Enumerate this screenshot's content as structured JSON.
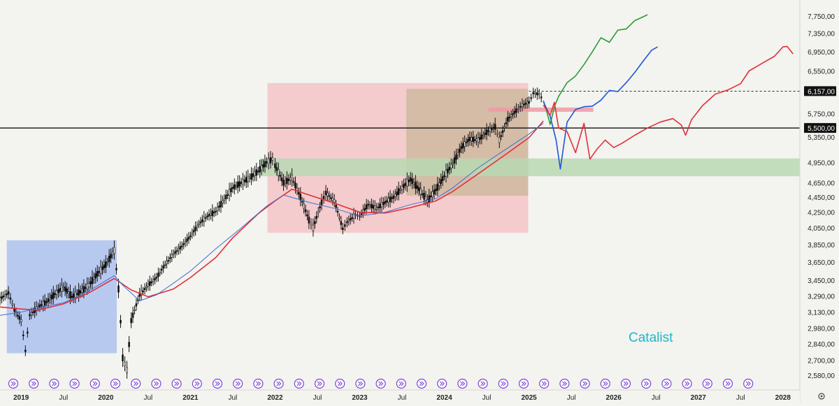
{
  "watermark": "Catalist",
  "chart_data": {
    "type": "line",
    "title": "",
    "xlabel": "",
    "ylabel": "",
    "log_scale": true,
    "ylim": [
      2520,
      8000
    ],
    "xlim": [
      2018.75,
      2028.2
    ],
    "grid": false,
    "x_ticks": [
      {
        "x": 2019.0,
        "label": "2019",
        "bold": true
      },
      {
        "x": 2019.5,
        "label": "Jul",
        "bold": false
      },
      {
        "x": 2020.0,
        "label": "2020",
        "bold": true
      },
      {
        "x": 2020.5,
        "label": "Jul",
        "bold": false
      },
      {
        "x": 2021.0,
        "label": "2021",
        "bold": true
      },
      {
        "x": 2021.5,
        "label": "Jul",
        "bold": false
      },
      {
        "x": 2022.0,
        "label": "2022",
        "bold": true
      },
      {
        "x": 2022.5,
        "label": "Jul",
        "bold": false
      },
      {
        "x": 2023.0,
        "label": "2023",
        "bold": true
      },
      {
        "x": 2023.5,
        "label": "Jul",
        "bold": false
      },
      {
        "x": 2024.0,
        "label": "2024",
        "bold": true
      },
      {
        "x": 2024.5,
        "label": "Jul",
        "bold": false
      },
      {
        "x": 2025.0,
        "label": "2025",
        "bold": true
      },
      {
        "x": 2025.5,
        "label": "Jul",
        "bold": false
      },
      {
        "x": 2026.0,
        "label": "2026",
        "bold": true
      },
      {
        "x": 2026.5,
        "label": "Jul",
        "bold": false
      },
      {
        "x": 2027.0,
        "label": "2027",
        "bold": true
      },
      {
        "x": 2027.5,
        "label": "Jul",
        "bold": false
      },
      {
        "x": 2028.0,
        "label": "2028",
        "bold": true
      }
    ],
    "y_ticks": [
      {
        "value": 7750,
        "label": "7,750,00"
      },
      {
        "value": 7350,
        "label": "7,350,00"
      },
      {
        "value": 6950,
        "label": "6,950,00"
      },
      {
        "value": 6550,
        "label": "6,550,00"
      },
      {
        "value": 5750,
        "label": "5,750,00"
      },
      {
        "value": 5350,
        "label": "5,350,00"
      },
      {
        "value": 4950,
        "label": "4,950,00"
      },
      {
        "value": 4650,
        "label": "4,650,00"
      },
      {
        "value": 4450,
        "label": "4,450,00"
      },
      {
        "value": 4250,
        "label": "4,250,00"
      },
      {
        "value": 4050,
        "label": "4,050,00"
      },
      {
        "value": 3850,
        "label": "3,850,00"
      },
      {
        "value": 3650,
        "label": "3,650,00"
      },
      {
        "value": 3450,
        "label": "3,450,00"
      },
      {
        "value": 3290,
        "label": "3,290,00"
      },
      {
        "value": 3130,
        "label": "3,130,00"
      },
      {
        "value": 2980,
        "label": "2,980,00"
      },
      {
        "value": 2840,
        "label": "2,840,00"
      },
      {
        "value": 2700,
        "label": "2,700,00"
      },
      {
        "value": 2580,
        "label": "2,580,00"
      }
    ],
    "price_labels": [
      {
        "value": 6157,
        "label": "6,157,00",
        "line": "dashed",
        "x_start": 2025.0
      },
      {
        "value": 5500,
        "label": "5,500,00",
        "line": "solid",
        "x_start": 2018.75
      }
    ],
    "zones": [
      {
        "x0": 2018.83,
        "x1": 2020.13,
        "y0": 2760,
        "y1": 3900,
        "color": "#b8c9f0"
      },
      {
        "x0": 2021.91,
        "x1": 2024.99,
        "y0": 3990,
        "y1": 6310,
        "color": "#f4cccd"
      },
      {
        "x0": 2023.55,
        "x1": 2024.99,
        "y0": 4470,
        "y1": 6200,
        "color": "#c9b79a",
        "opacity": 0.75
      },
      {
        "x0": 2021.82,
        "x1": 2028.2,
        "y0": 4745,
        "y1": 5010,
        "color": "#b9d8b3",
        "opacity": 0.85
      },
      {
        "x0": 2024.52,
        "x1": 2025.76,
        "y0": 5780,
        "y1": 5855,
        "color": "#ef9aa4",
        "opacity": 0.85
      }
    ],
    "series": [
      {
        "role": "price",
        "color": "#111111",
        "points": [
          [
            2018.75,
            3260
          ],
          [
            2018.85,
            3320
          ],
          [
            2018.92,
            3150
          ],
          [
            2019.0,
            3050
          ],
          [
            2019.05,
            2780
          ],
          [
            2019.1,
            3100
          ],
          [
            2019.2,
            3180
          ],
          [
            2019.3,
            3230
          ],
          [
            2019.4,
            3310
          ],
          [
            2019.5,
            3380
          ],
          [
            2019.6,
            3280
          ],
          [
            2019.7,
            3330
          ],
          [
            2019.8,
            3400
          ],
          [
            2019.9,
            3520
          ],
          [
            2020.0,
            3620
          ],
          [
            2020.1,
            3780
          ],
          [
            2020.15,
            3360
          ],
          [
            2020.2,
            2720
          ],
          [
            2020.25,
            2620
          ],
          [
            2020.3,
            3050
          ],
          [
            2020.4,
            3300
          ],
          [
            2020.5,
            3400
          ],
          [
            2020.6,
            3480
          ],
          [
            2020.7,
            3620
          ],
          [
            2020.8,
            3740
          ],
          [
            2020.9,
            3830
          ],
          [
            2021.0,
            3950
          ],
          [
            2021.1,
            4100
          ],
          [
            2021.2,
            4200
          ],
          [
            2021.3,
            4260
          ],
          [
            2021.4,
            4420
          ],
          [
            2021.5,
            4580
          ],
          [
            2021.6,
            4650
          ],
          [
            2021.7,
            4720
          ],
          [
            2021.8,
            4820
          ],
          [
            2021.9,
            4950
          ],
          [
            2021.97,
            5000
          ],
          [
            2022.0,
            4900
          ],
          [
            2022.1,
            4650
          ],
          [
            2022.2,
            4720
          ],
          [
            2022.3,
            4450
          ],
          [
            2022.4,
            4150
          ],
          [
            2022.45,
            4050
          ],
          [
            2022.55,
            4380
          ],
          [
            2022.6,
            4510
          ],
          [
            2022.7,
            4400
          ],
          [
            2022.8,
            4040
          ],
          [
            2022.85,
            4120
          ],
          [
            2022.95,
            4220
          ],
          [
            2023.0,
            4200
          ],
          [
            2023.1,
            4350
          ],
          [
            2023.2,
            4300
          ],
          [
            2023.3,
            4380
          ],
          [
            2023.4,
            4450
          ],
          [
            2023.5,
            4580
          ],
          [
            2023.6,
            4700
          ],
          [
            2023.7,
            4560
          ],
          [
            2023.8,
            4400
          ],
          [
            2023.9,
            4550
          ],
          [
            2024.0,
            4750
          ],
          [
            2024.1,
            4930
          ],
          [
            2024.2,
            5180
          ],
          [
            2024.3,
            5320
          ],
          [
            2024.4,
            5300
          ],
          [
            2024.5,
            5430
          ],
          [
            2024.6,
            5520
          ],
          [
            2024.65,
            5300
          ],
          [
            2024.75,
            5650
          ],
          [
            2024.85,
            5800
          ],
          [
            2024.92,
            5900
          ],
          [
            2025.0,
            5950
          ],
          [
            2025.05,
            6120
          ],
          [
            2025.12,
            6100
          ],
          [
            2025.17,
            5980
          ]
        ]
      },
      {
        "role": "moving-average-red",
        "color": "#e0303a",
        "points": [
          [
            2018.75,
            3180
          ],
          [
            2019.0,
            3160
          ],
          [
            2019.2,
            3150
          ],
          [
            2019.5,
            3210
          ],
          [
            2019.8,
            3320
          ],
          [
            2020.1,
            3470
          ],
          [
            2020.3,
            3350
          ],
          [
            2020.5,
            3280
          ],
          [
            2020.8,
            3360
          ],
          [
            2021.0,
            3480
          ],
          [
            2021.3,
            3700
          ],
          [
            2021.5,
            3930
          ],
          [
            2021.8,
            4230
          ],
          [
            2022.0,
            4400
          ],
          [
            2022.2,
            4560
          ],
          [
            2022.4,
            4480
          ],
          [
            2022.7,
            4370
          ],
          [
            2023.0,
            4250
          ],
          [
            2023.3,
            4240
          ],
          [
            2023.6,
            4310
          ],
          [
            2023.9,
            4400
          ],
          [
            2024.1,
            4530
          ],
          [
            2024.4,
            4780
          ],
          [
            2024.7,
            5050
          ],
          [
            2025.0,
            5340
          ],
          [
            2025.17,
            5620
          ]
        ]
      },
      {
        "role": "moving-average-blue",
        "color": "#3f6fd1",
        "points": [
          [
            2018.75,
            3100
          ],
          [
            2019.0,
            3130
          ],
          [
            2019.2,
            3170
          ],
          [
            2019.5,
            3220
          ],
          [
            2019.8,
            3340
          ],
          [
            2020.1,
            3500
          ],
          [
            2020.2,
            3400
          ],
          [
            2020.4,
            3240
          ],
          [
            2020.6,
            3300
          ],
          [
            2020.8,
            3420
          ],
          [
            2021.0,
            3550
          ],
          [
            2021.3,
            3800
          ],
          [
            2021.6,
            4050
          ],
          [
            2021.9,
            4330
          ],
          [
            2022.1,
            4480
          ],
          [
            2022.4,
            4380
          ],
          [
            2022.7,
            4300
          ],
          [
            2023.0,
            4200
          ],
          [
            2023.3,
            4250
          ],
          [
            2023.6,
            4350
          ],
          [
            2023.9,
            4430
          ],
          [
            2024.1,
            4580
          ],
          [
            2024.4,
            4870
          ],
          [
            2024.7,
            5130
          ],
          [
            2025.0,
            5400
          ],
          [
            2025.17,
            5580
          ]
        ]
      },
      {
        "role": "projection-green",
        "color": "#2f9a3a",
        "points": [
          [
            2025.17,
            5980
          ],
          [
            2025.2,
            5840
          ],
          [
            2025.25,
            5560
          ],
          [
            2025.3,
            5870
          ],
          [
            2025.35,
            6060
          ],
          [
            2025.45,
            6320
          ],
          [
            2025.55,
            6450
          ],
          [
            2025.65,
            6680
          ],
          [
            2025.75,
            6950
          ],
          [
            2025.85,
            7250
          ],
          [
            2025.95,
            7150
          ],
          [
            2026.05,
            7420
          ],
          [
            2026.15,
            7450
          ],
          [
            2026.25,
            7640
          ],
          [
            2026.35,
            7730
          ],
          [
            2026.4,
            7780
          ]
        ]
      },
      {
        "role": "projection-blue",
        "color": "#1f57d6",
        "points": [
          [
            2025.17,
            5960
          ],
          [
            2025.25,
            5700
          ],
          [
            2025.32,
            5300
          ],
          [
            2025.37,
            4850
          ],
          [
            2025.45,
            5600
          ],
          [
            2025.55,
            5820
          ],
          [
            2025.65,
            5870
          ],
          [
            2025.75,
            5880
          ],
          [
            2025.85,
            5990
          ],
          [
            2025.95,
            6170
          ],
          [
            2026.05,
            6150
          ],
          [
            2026.15,
            6320
          ],
          [
            2026.25,
            6520
          ],
          [
            2026.35,
            6750
          ],
          [
            2026.45,
            6980
          ],
          [
            2026.52,
            7050
          ]
        ]
      },
      {
        "role": "projection-red",
        "color": "#e0303a",
        "points": [
          [
            2025.17,
            5900
          ],
          [
            2025.25,
            5720
          ],
          [
            2025.3,
            5950
          ],
          [
            2025.35,
            5500
          ],
          [
            2025.45,
            5440
          ],
          [
            2025.55,
            5100
          ],
          [
            2025.65,
            5580
          ],
          [
            2025.72,
            5000
          ],
          [
            2025.8,
            5150
          ],
          [
            2025.9,
            5300
          ],
          [
            2026.0,
            5180
          ],
          [
            2026.1,
            5250
          ],
          [
            2026.25,
            5380
          ],
          [
            2026.4,
            5500
          ],
          [
            2026.55,
            5600
          ],
          [
            2026.7,
            5660
          ],
          [
            2026.8,
            5550
          ],
          [
            2026.85,
            5380
          ],
          [
            2026.92,
            5640
          ],
          [
            2027.05,
            5890
          ],
          [
            2027.2,
            6100
          ],
          [
            2027.35,
            6180
          ],
          [
            2027.5,
            6300
          ],
          [
            2027.6,
            6550
          ],
          [
            2027.75,
            6700
          ],
          [
            2027.9,
            6850
          ],
          [
            2028.0,
            7050
          ],
          [
            2028.05,
            7060
          ],
          [
            2028.12,
            6900
          ]
        ]
      }
    ],
    "event_markers_count": 37
  }
}
